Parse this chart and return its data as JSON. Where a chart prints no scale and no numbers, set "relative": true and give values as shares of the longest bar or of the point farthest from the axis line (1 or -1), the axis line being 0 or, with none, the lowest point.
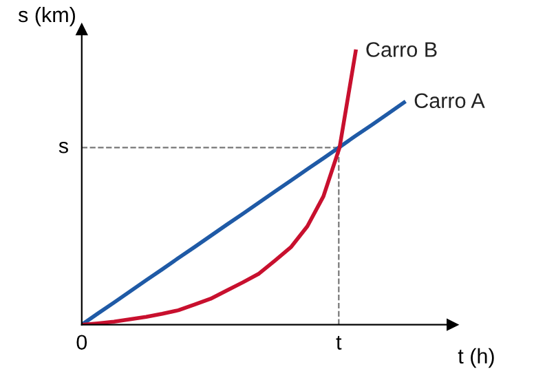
{
  "chart_data": {
    "type": "line",
    "relative": true,
    "xlabel": "t (h)",
    "ylabel": "s (km)",
    "annotations": [
      "0",
      "t"
    ],
    "categories": [
      null,
      null,
      null,
      null,
      null,
      null,
      null,
      null,
      null,
      null,
      null,
      null,
      null,
      null,
      null,
      null,
      null,
      null,
      null,
      null,
      null
    ],
    "series": [
      {
        "name": "Carro A",
        "color": "#1f5aa6",
        "values": [
          0,
          0.041,
          0.081,
          0.122,
          0.163,
          0.203,
          0.244,
          0.284,
          0.325,
          0.366,
          0.406,
          0.447,
          0.488,
          0.528,
          0.569,
          0.609,
          0.65,
          0.691,
          0.731,
          0.772,
          0.813
        ]
      },
      {
        "name": "Carro B",
        "color": "#c8102e",
        "values": [
          0,
          0.005,
          0.011,
          0.02,
          0.029,
          0.04,
          0.053,
          0.074,
          0.095,
          0.125,
          0.155,
          0.187,
          0.235,
          0.285,
          0.36,
          0.47,
          0.648,
          1.0,
          null,
          null,
          null
        ]
      }
    ],
    "ref_lines": [
      {
        "axis": "y",
        "value": 0.648,
        "label": "s",
        "color": "#777777",
        "line_style": "dashed"
      }
    ],
    "grid": false,
    "legend": false,
    "marker": "none",
    "line_style": "solid"
  }
}
